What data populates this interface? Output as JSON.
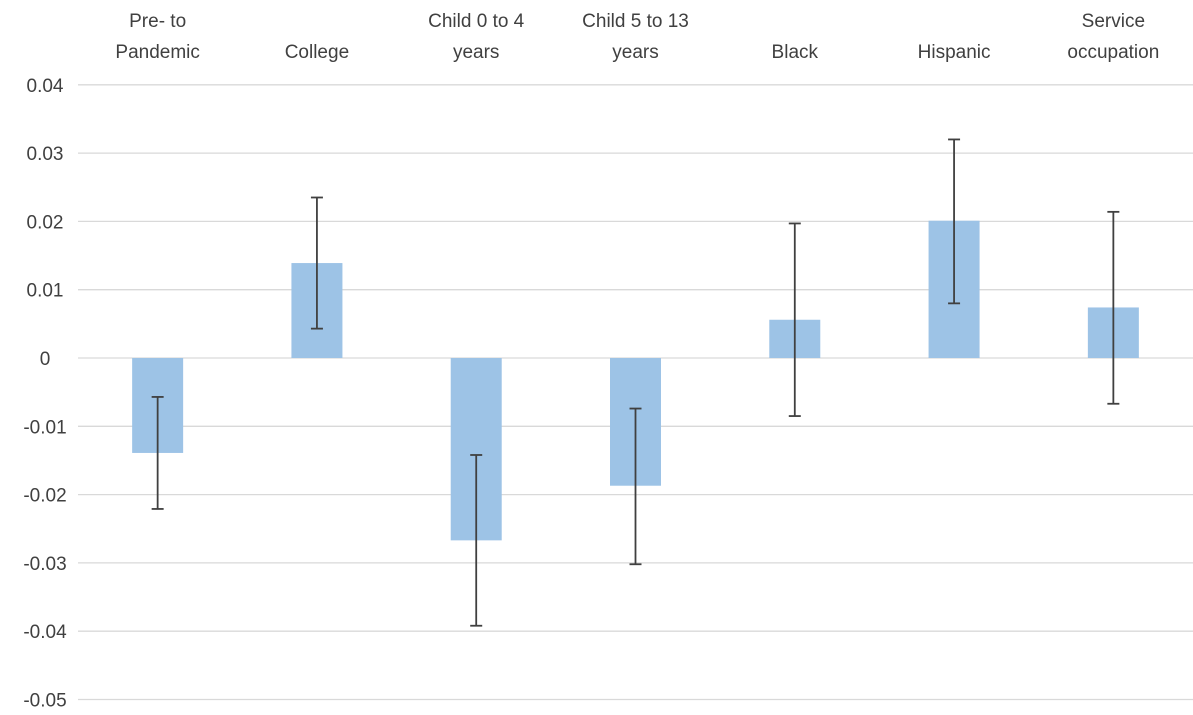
{
  "chart_data": {
    "type": "bar",
    "title": "",
    "xlabel": "",
    "ylabel": "",
    "ylim": [
      -0.05,
      0.04
    ],
    "yticks": [
      "0.04",
      "0.03",
      "0.02",
      "0.01",
      "0",
      "-0.01",
      "-0.02",
      "-0.03",
      "-0.04",
      "-0.05"
    ],
    "yticks_values": [
      0.04,
      0.03,
      0.02,
      0.01,
      0,
      -0.01,
      -0.02,
      -0.03,
      -0.04,
      -0.05
    ],
    "grid": true,
    "category_axis_position": "top",
    "categories": [
      [
        "Pre- to",
        "Pandemic"
      ],
      [
        "College"
      ],
      [
        "Child 0 to 4",
        "years"
      ],
      [
        "Child 5 to 13",
        "years"
      ],
      [
        "Black"
      ],
      [
        "Hispanic"
      ],
      [
        "Service",
        "occupation"
      ]
    ],
    "values": [
      -0.0139,
      0.0139,
      -0.0267,
      -0.0187,
      0.0056,
      0.0201,
      0.0074
    ],
    "error_low": [
      -0.0221,
      0.0043,
      -0.0392,
      -0.0302,
      -0.0085,
      0.008,
      -0.0067
    ],
    "error_high": [
      -0.0057,
      0.0235,
      -0.0142,
      -0.0074,
      0.0197,
      0.032,
      0.0214
    ],
    "colors": {
      "bar": "#9dc3e6",
      "error_bar": "#404040",
      "grid": "#d9d9d9",
      "text": "#404040"
    }
  }
}
